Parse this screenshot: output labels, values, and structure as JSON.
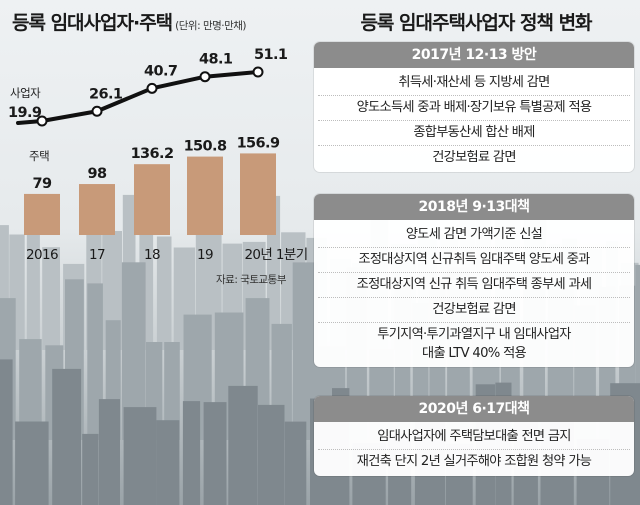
{
  "chart_title": "등록 임대사업자·주택",
  "chart_unit": "(단위: 만명·만채)",
  "source": "자료: 국토교통부",
  "chart_data": {
    "type": "bar",
    "categories": [
      "2016",
      "17",
      "18",
      "19",
      "20년 1분기"
    ],
    "series": [
      {
        "name": "사업자",
        "type": "line",
        "values": [
          19.9,
          26.1,
          40.7,
          48.1,
          51.1
        ],
        "labels": [
          "19.9",
          "26.1",
          "40.7",
          "48.1",
          "51.1"
        ]
      },
      {
        "name": "주택",
        "type": "bar",
        "values": [
          79,
          98,
          136.2,
          150.8,
          156.9
        ],
        "labels": [
          "79",
          "98",
          "136.2",
          "150.8",
          "156.9"
        ]
      }
    ],
    "colors": {
      "bar": "#c89a79",
      "line": "#111111"
    }
  },
  "policy_title": "등록 임대주택사업자 정책 변화",
  "policies": [
    {
      "heading": "2017년 12·13 방안",
      "items": [
        "취득세·재산세 등 지방세 감면",
        "양도소득세 중과 배제·장기보유 특별공제 적용",
        "종합부동산세 합산 배제",
        "건강보험료 감면"
      ]
    },
    {
      "heading": "2018년 9·13대책",
      "items": [
        "양도세 감면 가액기준 신설",
        "조정대상지역 신규취득 임대주택 양도세 중과",
        "조정대상지역 신규 취득 임대주택 종부세 과세",
        "건강보험료 감면",
        "투기지역·투기과열지구 내 임대사업자\n대출 LTV 40% 적용"
      ]
    },
    {
      "heading": "2020년 6·17대책",
      "items": [
        "임대사업자에 주택담보대출 전면 금지",
        "재건축 단지 2년 실거주해야 조합원 청약 가능"
      ]
    }
  ]
}
